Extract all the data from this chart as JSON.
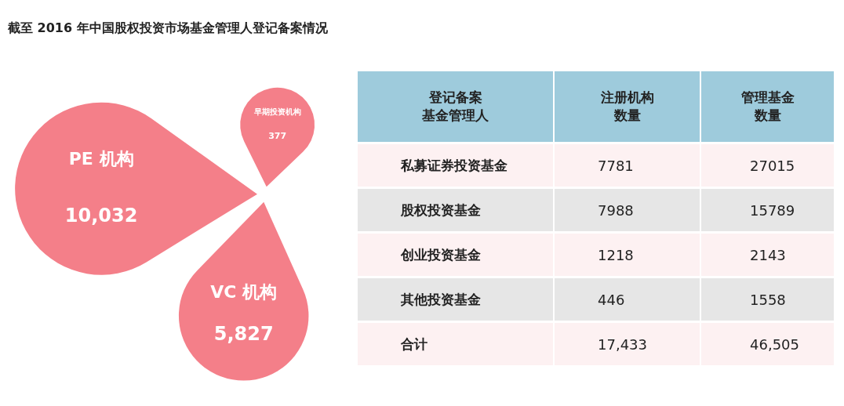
{
  "chart_data": [
    {
      "type": "other",
      "title": "截至 2016 年中国股权投资市场基金管理人登记备案情况",
      "categories": [
        "PE 机构",
        "VC 机构",
        "早期投资机构"
      ],
      "values": [
        10032,
        5827,
        377
      ],
      "value_labels": [
        "10,032",
        "5,827",
        "377"
      ],
      "color": "#f47f89"
    },
    {
      "type": "other",
      "ylabel": "登记备案基金管理人",
      "categories": [
        "私募证券投资基金",
        "股权投资基金",
        "创业投资基金",
        "其他投资基金",
        "合计"
      ],
      "series": [
        {
          "name": "注册机构数量",
          "colors": [
            "#fdf1f2",
            "#e6e6e6",
            "#fdf1f2",
            "#e6e6e6",
            "#fdf1f2"
          ],
          "values": [
            7781,
            7988,
            1218,
            446,
            17433
          ],
          "value_labels": [
            "7781",
            "7988",
            "1218",
            "446",
            "17,433"
          ]
        },
        {
          "name": "管理基金数量",
          "colors": [
            "#fdf1f2",
            "#e6e6e6",
            "#fdf1f2",
            "#e6e6e6",
            "#fdf1f2"
          ],
          "values": [
            27015,
            15789,
            2143,
            1558,
            46505
          ],
          "value_labels": [
            "27015",
            "15789",
            "2143",
            "1558",
            "46,505"
          ]
        }
      ]
    }
  ]
}
